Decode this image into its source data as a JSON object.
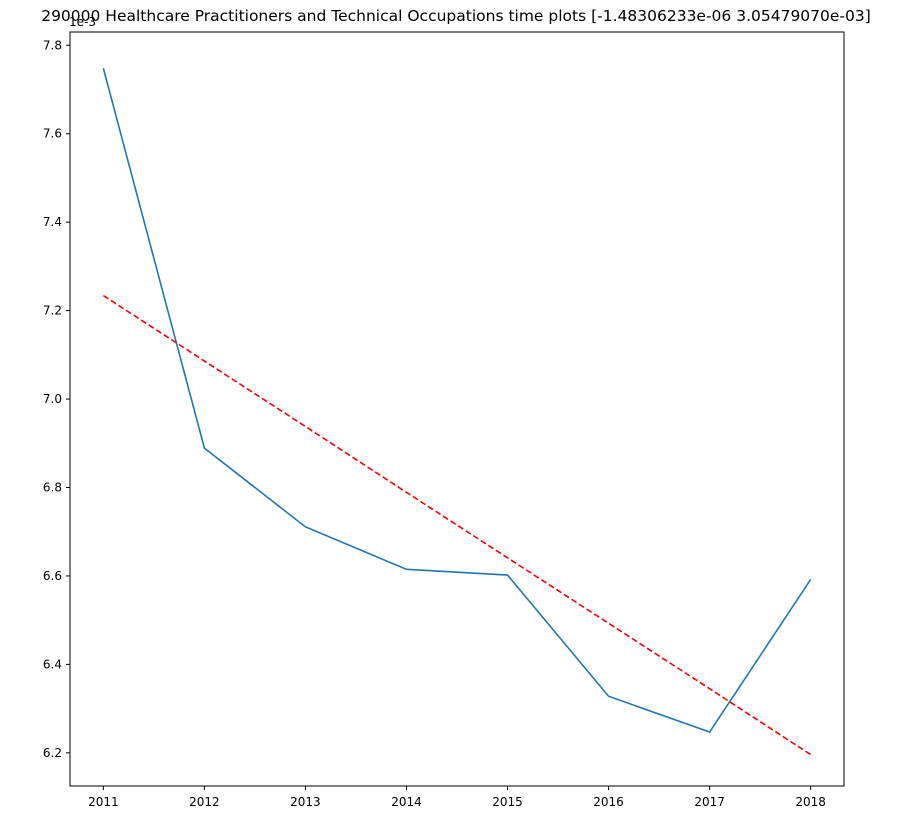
{
  "chart_data": {
    "type": "line",
    "title": "290000 Healthcare Practitioners and Technical Occupations time plots [-1.48306233e-06  3.05479070e-03]",
    "xlabel": "",
    "ylabel": "",
    "y_offset_label": "1e-3",
    "x": [
      2011,
      2012,
      2013,
      2014,
      2015,
      2016,
      2017,
      2018
    ],
    "x_ticks": [
      "2011",
      "2012",
      "2013",
      "2014",
      "2015",
      "2016",
      "2017",
      "2018"
    ],
    "y_ticks": [
      "6.2",
      "6.4",
      "6.6",
      "6.8",
      "7.0",
      "7.2",
      "7.4",
      "7.6",
      "7.8"
    ],
    "y_tick_values": [
      6.2,
      6.4,
      6.6,
      6.8,
      7.0,
      7.2,
      7.4,
      7.6,
      7.8
    ],
    "ylim": [
      6.125,
      7.83
    ],
    "xlim": [
      2010.67,
      2018.33
    ],
    "grid": false,
    "series": [
      {
        "values": [
          7.748,
          6.889,
          6.711,
          6.615,
          6.602,
          6.328,
          6.247,
          6.592
        ],
        "color": "#1f77b4",
        "style": "solid"
      },
      {
        "values": [
          7.234,
          7.086,
          6.938,
          6.789,
          6.641,
          6.493,
          6.345,
          6.196
        ],
        "color": "#ff0000",
        "style": "dashed"
      }
    ]
  }
}
